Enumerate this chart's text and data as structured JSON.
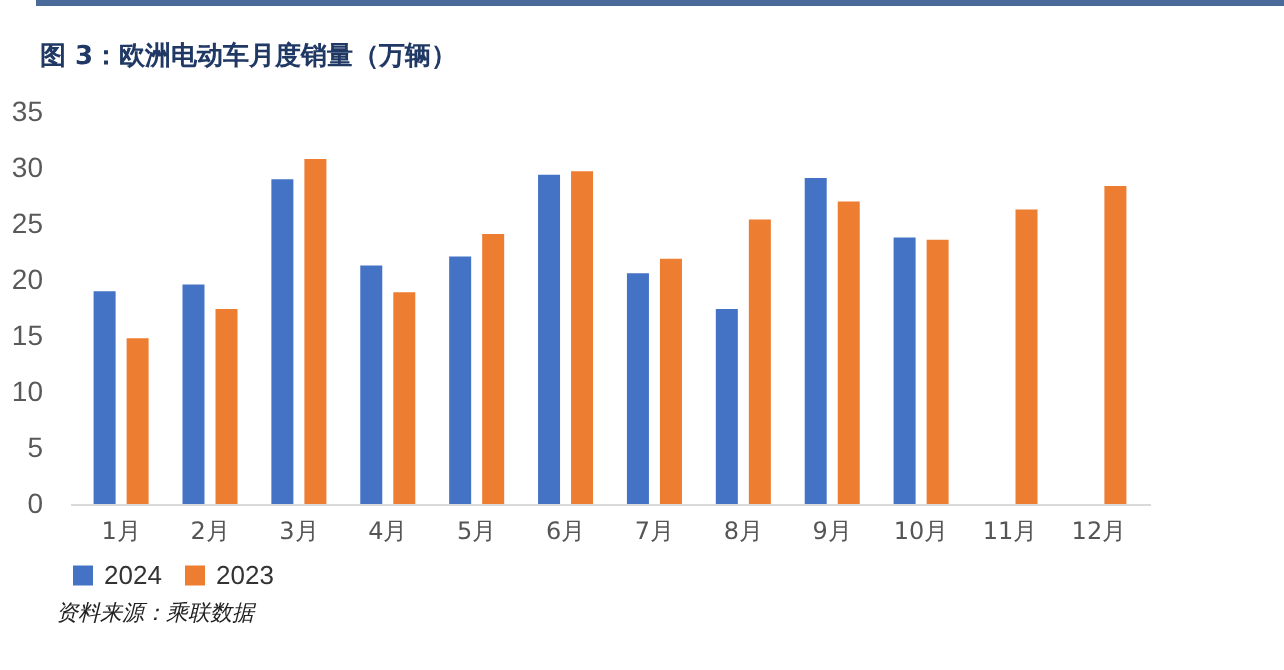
{
  "chart_data": {
    "type": "bar",
    "title": "图 3：欧洲电动车月度销量（万辆）",
    "categories": [
      "1月",
      "2月",
      "3月",
      "4月",
      "5月",
      "6月",
      "7月",
      "8月",
      "9月",
      "10月",
      "11月",
      "12月"
    ],
    "series": [
      {
        "name": "2024",
        "color": "#4472c4",
        "values": [
          19.0,
          19.6,
          29.0,
          21.3,
          22.1,
          29.4,
          20.6,
          17.4,
          29.1,
          23.8,
          null,
          null
        ]
      },
      {
        "name": "2023",
        "color": "#ed7d31",
        "values": [
          14.8,
          17.4,
          30.8,
          18.9,
          24.1,
          29.7,
          21.9,
          25.4,
          27.0,
          23.6,
          26.3,
          28.4
        ]
      }
    ],
    "ylim": [
      0,
      35
    ],
    "yticks": [
      0,
      5,
      10,
      15,
      20,
      25,
      30,
      35
    ],
    "grid": false,
    "legend": "bottom",
    "annotations": [
      "资料来源：乘联数据"
    ]
  }
}
